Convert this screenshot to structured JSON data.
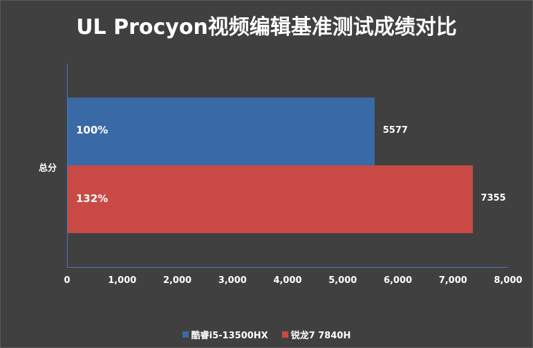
{
  "chart_data": {
    "type": "bar",
    "orientation": "horizontal",
    "title": "UL Procyon视频编辑基准测试成绩对比",
    "categories": [
      "总分"
    ],
    "series": [
      {
        "name": "酷睿i5-13500HX",
        "values": [
          5577
        ],
        "relative_label": "100%",
        "color": "#3a6aa6"
      },
      {
        "name": "锐龙7 7840H",
        "values": [
          7355
        ],
        "relative_label": "132%",
        "color": "#c94a45"
      }
    ],
    "xlabel": "",
    "ylabel": "",
    "xlim": [
      0,
      8000
    ],
    "x_ticks": [
      "0",
      "1,000",
      "2,000",
      "3,000",
      "4,000",
      "5,000",
      "6,000",
      "7,000",
      "8,000"
    ],
    "grid": false,
    "legend_position": "bottom"
  },
  "colors": {
    "background": "#404040",
    "axis": "#4a78c0",
    "text": "#ffffff"
  }
}
